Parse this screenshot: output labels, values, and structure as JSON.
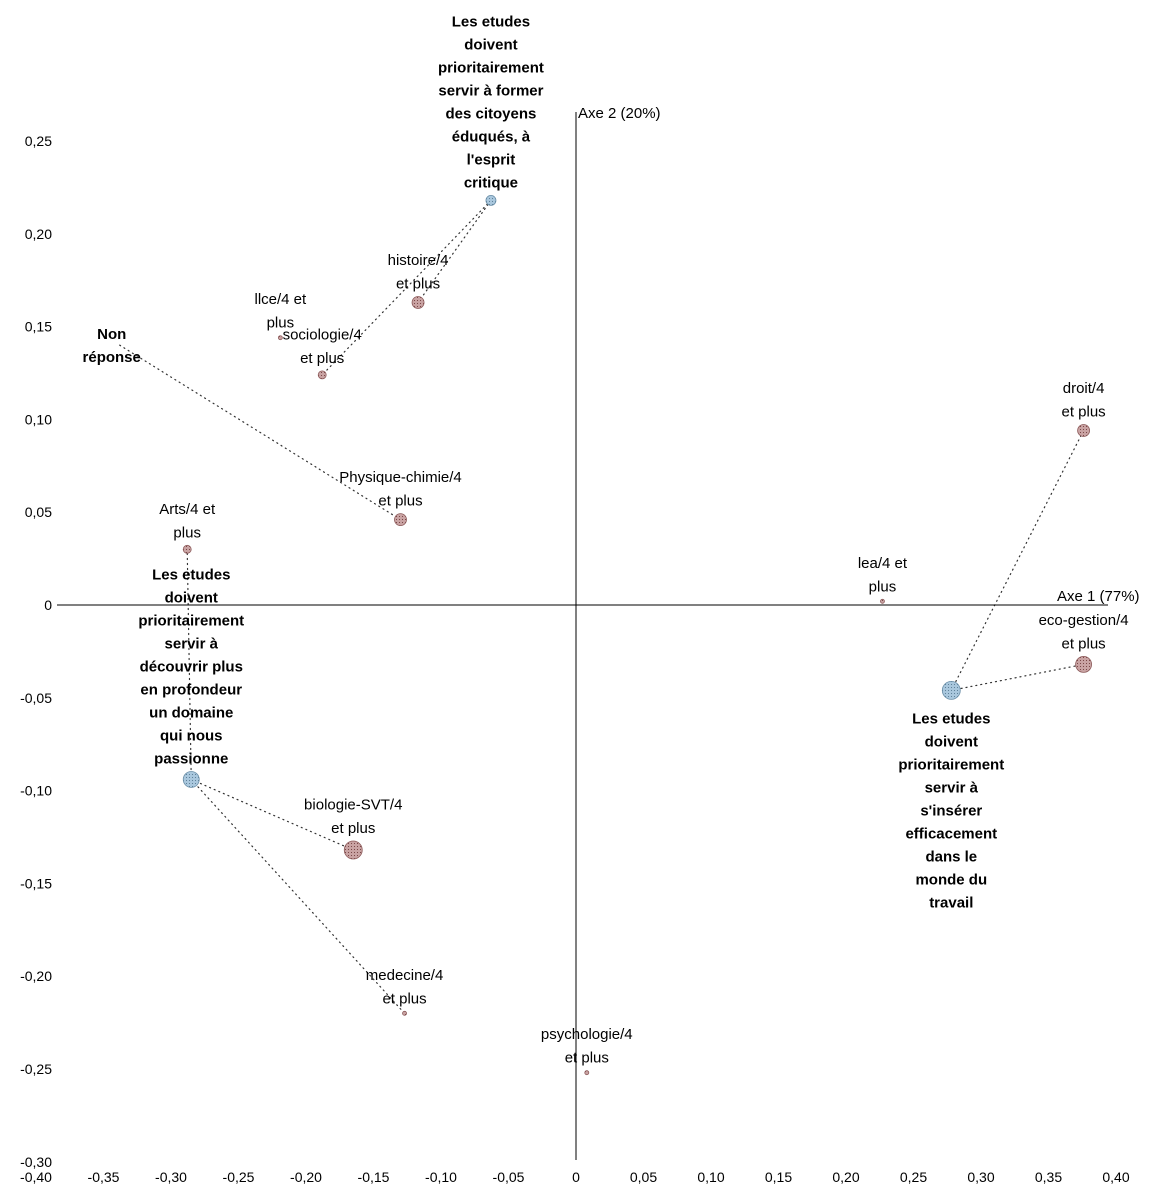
{
  "chart_data": {
    "type": "scatter",
    "x_axis_label": "Axe 1 (77%)",
    "y_axis_label": "Axe 2 (20%)",
    "xlim": [
      -0.4,
      0.4
    ],
    "ylim": [
      -0.3,
      0.25
    ],
    "x_ticks": [
      {
        "v": -0.4,
        "label": "-0,40"
      },
      {
        "v": -0.35,
        "label": "-0,35"
      },
      {
        "v": -0.3,
        "label": "-0,30"
      },
      {
        "v": -0.25,
        "label": "-0,25"
      },
      {
        "v": -0.2,
        "label": "-0,20"
      },
      {
        "v": -0.15,
        "label": "-0,15"
      },
      {
        "v": -0.1,
        "label": "-0,10"
      },
      {
        "v": -0.05,
        "label": "-0,05"
      },
      {
        "v": 0,
        "label": "0"
      },
      {
        "v": 0.05,
        "label": "0,05"
      },
      {
        "v": 0.1,
        "label": "0,10"
      },
      {
        "v": 0.15,
        "label": "0,15"
      },
      {
        "v": 0.2,
        "label": "0,20"
      },
      {
        "v": 0.25,
        "label": "0,25"
      },
      {
        "v": 0.3,
        "label": "0,30"
      },
      {
        "v": 0.35,
        "label": "0,35"
      },
      {
        "v": 0.4,
        "label": "0,40"
      }
    ],
    "y_ticks": [
      {
        "v": 0.25,
        "label": "0,25"
      },
      {
        "v": 0.2,
        "label": "0,20"
      },
      {
        "v": 0.15,
        "label": "0,15"
      },
      {
        "v": 0.1,
        "label": "0,10"
      },
      {
        "v": 0.05,
        "label": "0,05"
      },
      {
        "v": 0,
        "label": "0"
      },
      {
        "v": -0.05,
        "label": "-0,05"
      },
      {
        "v": -0.1,
        "label": "-0,10"
      },
      {
        "v": -0.15,
        "label": "-0,15"
      },
      {
        "v": -0.2,
        "label": "-0,20"
      },
      {
        "v": -0.25,
        "label": "-0,25"
      },
      {
        "v": -0.3,
        "label": "-0,30"
      }
    ],
    "colors": {
      "study_field": "#c9a3a3",
      "study_field_dark": "#8c5a5a",
      "objective": "#a9c7dd",
      "objective_dark": "#6b8fa8",
      "axis": "#000000",
      "text": "#000000",
      "link": "#333333"
    },
    "series": [
      {
        "name": "Les etudes doivent prioritairement servir à former des citoyens éduqués, à l'esprit critique",
        "kind": "objective",
        "x": -0.063,
        "y": 0.218,
        "size": 5,
        "label_lines": [
          "Les etudes",
          "doivent",
          "prioritairement",
          "servir à former",
          "des citoyens",
          "éduqués, à",
          "l'esprit",
          "critique"
        ],
        "bold": true
      },
      {
        "name": "Les etudes doivent prioritairement servir à découvrir plus en profondeur un domaine qui nous passionne",
        "kind": "objective",
        "x": -0.285,
        "y": -0.094,
        "size": 8,
        "label_lines": [
          "Les etudes",
          "doivent",
          "prioritairement",
          "servir à",
          "découvrir plus",
          "en profondeur",
          "un domaine",
          "qui nous",
          "passionne"
        ],
        "bold": true
      },
      {
        "name": "Les etudes doivent prioritairement servir à s'insérer efficacement dans le monde du travail",
        "kind": "objective",
        "x": 0.278,
        "y": -0.046,
        "size": 9,
        "label_lines": [
          "Les etudes",
          "doivent",
          "prioritairement",
          "servir à",
          "s'insérer",
          "efficacement",
          "dans le",
          "monde du",
          "travail"
        ],
        "bold": true
      },
      {
        "name": "Non réponse",
        "kind": "none",
        "x": -0.338,
        "y": 0.14,
        "size": 0,
        "label_lines": [
          "Non",
          "réponse"
        ],
        "bold": true
      },
      {
        "name": "histoire/4 et plus",
        "kind": "field",
        "x": -0.117,
        "y": 0.163,
        "size": 6,
        "label_lines": [
          "histoire/4",
          "et plus"
        ],
        "bold": false
      },
      {
        "name": "llce/4 et plus",
        "kind": "field",
        "x": -0.219,
        "y": 0.144,
        "size": 2,
        "label_lines": [
          "llce/4 et",
          "plus"
        ],
        "bold": false
      },
      {
        "name": "sociologie/4 et plus",
        "kind": "field",
        "x": -0.188,
        "y": 0.124,
        "size": 4,
        "label_lines": [
          "sociologie/4",
          "et plus"
        ],
        "bold": false
      },
      {
        "name": "Physique-chimie/4 et plus",
        "kind": "field",
        "x": -0.13,
        "y": 0.046,
        "size": 6,
        "label_lines": [
          "Physique-chimie/4",
          "et plus"
        ],
        "bold": false
      },
      {
        "name": "Arts/4 et plus",
        "kind": "field",
        "x": -0.288,
        "y": 0.03,
        "size": 4,
        "label_lines": [
          "Arts/4 et",
          "plus"
        ],
        "bold": false
      },
      {
        "name": "droit/4 et plus",
        "kind": "field",
        "x": 0.376,
        "y": 0.094,
        "size": 6,
        "label_lines": [
          "droit/4",
          "et plus"
        ],
        "bold": false
      },
      {
        "name": "lea/4 et plus",
        "kind": "field",
        "x": 0.227,
        "y": 0.002,
        "size": 2,
        "label_lines": [
          "lea/4 et",
          "plus"
        ],
        "bold": false
      },
      {
        "name": "eco-gestion/4 et plus",
        "kind": "field",
        "x": 0.376,
        "y": -0.032,
        "size": 8,
        "label_lines": [
          "eco-gestion/4",
          "et plus"
        ],
        "bold": false
      },
      {
        "name": "biologie-SVT/4 et plus",
        "kind": "field",
        "x": -0.165,
        "y": -0.132,
        "size": 9,
        "label_lines": [
          "biologie-SVT/4",
          "et plus"
        ],
        "bold": false
      },
      {
        "name": "medecine/4 et plus",
        "kind": "field",
        "x": -0.127,
        "y": -0.22,
        "size": 2,
        "label_lines": [
          "medecine/4",
          "et plus"
        ],
        "bold": false
      },
      {
        "name": "psychologie/4 et plus",
        "kind": "field",
        "x": 0.008,
        "y": -0.252,
        "size": 2,
        "label_lines": [
          "psychologie/4",
          "et plus"
        ],
        "bold": false
      }
    ],
    "links": [
      {
        "from": [
          -0.063,
          0.218
        ],
        "to": [
          -0.117,
          0.163
        ]
      },
      {
        "from": [
          -0.063,
          0.218
        ],
        "to": [
          -0.188,
          0.124
        ]
      },
      {
        "from": [
          -0.338,
          0.14
        ],
        "to": [
          -0.13,
          0.046
        ]
      },
      {
        "from": [
          0.278,
          -0.046
        ],
        "to": [
          0.376,
          -0.032
        ]
      },
      {
        "from": [
          0.278,
          -0.046
        ],
        "to": [
          0.376,
          0.094
        ]
      },
      {
        "from": [
          -0.285,
          -0.094
        ],
        "to": [
          -0.165,
          -0.132
        ]
      },
      {
        "from": [
          -0.285,
          -0.094
        ],
        "to": [
          -0.127,
          -0.22
        ]
      },
      {
        "from": [
          -0.285,
          -0.094
        ],
        "to": [
          -0.288,
          0.03
        ]
      }
    ]
  }
}
